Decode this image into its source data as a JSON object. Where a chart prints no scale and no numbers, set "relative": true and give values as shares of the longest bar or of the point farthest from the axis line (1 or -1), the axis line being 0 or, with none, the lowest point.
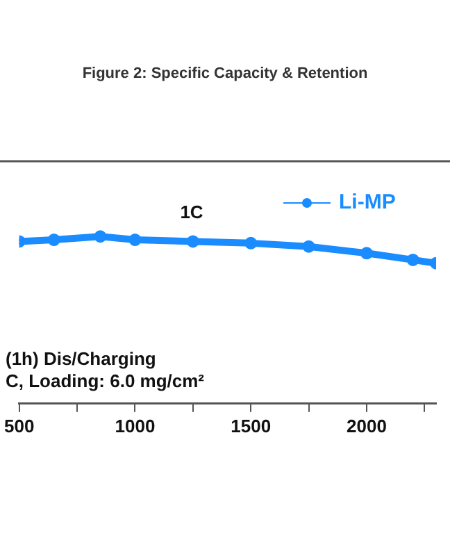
{
  "chart_data": {
    "type": "line",
    "title": "Figure 2: Specific Capacity & Retention",
    "relative": true,
    "x": [
      500,
      650,
      850,
      1000,
      1250,
      1500,
      1750,
      2000,
      2200,
      2300
    ],
    "series": [
      {
        "name": "Li-MP",
        "color": "#1a8cff",
        "values": [
          0.97,
          0.98,
          1,
          0.98,
          0.97,
          0.96,
          0.94,
          0.9,
          0.86,
          0.84
        ]
      }
    ],
    "xlim": [
      500,
      2300
    ],
    "xticks": [
      500,
      {
        "value": 750,
        "label": null
      },
      1000,
      {
        "value": 1250,
        "label": null
      },
      1500,
      {
        "value": 1750,
        "label": null
      },
      2000,
      {
        "value": 2250,
        "label": null
      }
    ],
    "annotations": [
      "1C",
      "(1h) Dis/Charging",
      "C, Loading: 6.0 mg/cm²"
    ],
    "legend": "top right",
    "marker": "circle",
    "line_style": "solid",
    "grid": false
  }
}
